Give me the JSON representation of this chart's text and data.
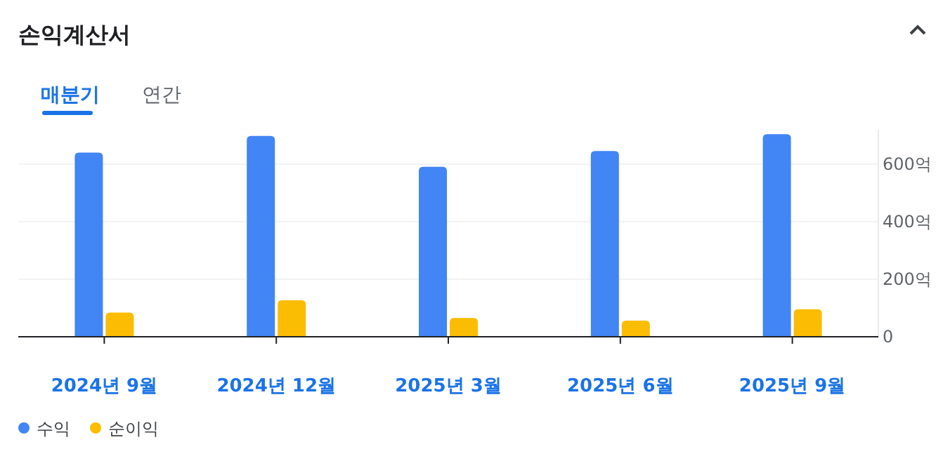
{
  "chart_data": {
    "type": "bar",
    "title": "손익계산서",
    "annotations": [
      "매분기",
      "연간"
    ],
    "categories": [
      "2024년 9월",
      "2024년 12월",
      "2025년 3월",
      "2025년 6월",
      "2025년 9월"
    ],
    "series": [
      {
        "name": "수익",
        "color": "#4285f4",
        "values": [
          640,
          698,
          591,
          646,
          704
        ]
      },
      {
        "name": "순이익",
        "color": "#fbbc04",
        "values": [
          84,
          127,
          65,
          56,
          96
        ]
      }
    ],
    "ylim": [
      0,
      720
    ],
    "yticks": [
      {
        "value": 0,
        "label": "0"
      },
      {
        "value": 200,
        "label": "200억"
      },
      {
        "value": 400,
        "label": "400억"
      },
      {
        "value": 600,
        "label": "600억"
      }
    ],
    "grid": "y",
    "legend": "bottom left"
  }
}
